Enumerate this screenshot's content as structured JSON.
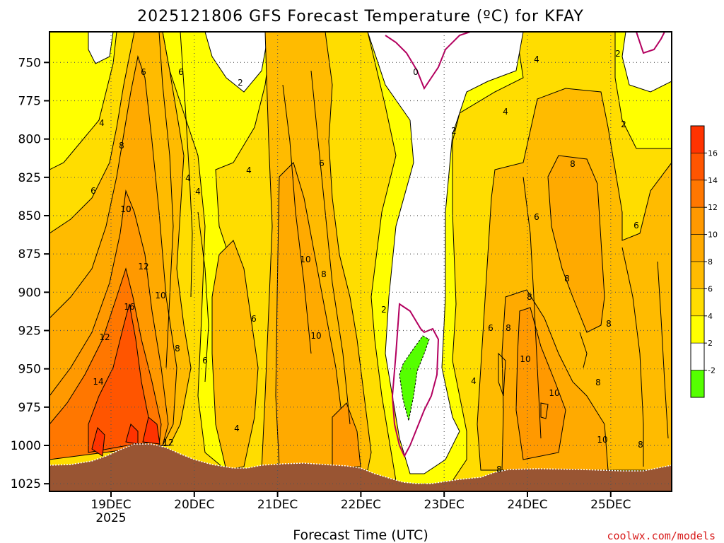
{
  "chart_data": {
    "type": "heatmap",
    "title": "2025121806 GFS Forecast Temperature (ºC) for KFAY",
    "xlabel": "Forecast Time (UTC)",
    "ylabel": "",
    "credit": "coolwx.com/models",
    "y_axis": {
      "ticks": [
        750,
        775,
        800,
        825,
        850,
        875,
        900,
        925,
        950,
        975,
        1000,
        1025
      ],
      "range": [
        730,
        1030
      ],
      "reversed": true
    },
    "x_axis": {
      "ticks": [
        {
          "label": "19DEC",
          "sublabel": "2025"
        },
        {
          "label": "20DEC",
          "sublabel": ""
        },
        {
          "label": "21DEC",
          "sublabel": ""
        },
        {
          "label": "22DEC",
          "sublabel": ""
        },
        {
          "label": "23DEC",
          "sublabel": ""
        },
        {
          "label": "24DEC",
          "sublabel": ""
        },
        {
          "label": "25DEC",
          "sublabel": ""
        }
      ]
    },
    "colorbar": {
      "levels": [
        {
          "label": "",
          "color": "#ff3300"
        },
        {
          "label": "16",
          "color": "#ff5500"
        },
        {
          "label": "14",
          "color": "#ff7700"
        },
        {
          "label": "12",
          "color": "#ff9900"
        },
        {
          "label": "10",
          "color": "#ffaa00"
        },
        {
          "label": "8",
          "color": "#ffbb00"
        },
        {
          "label": "6",
          "color": "#ffdd00"
        },
        {
          "label": "4",
          "color": "#ffff00"
        },
        {
          "label": "2",
          "color": "#ffffff"
        },
        {
          "label": "-2",
          "color": "#55ff00"
        }
      ]
    },
    "contour_labels": [
      "0",
      "2",
      "2",
      "2",
      "2",
      "2",
      "4",
      "4",
      "4",
      "4",
      "4",
      "4",
      "4",
      "4",
      "6",
      "6",
      "6",
      "6",
      "6",
      "6",
      "6",
      "6",
      "6",
      "8",
      "8",
      "8",
      "8",
      "8",
      "8",
      "8",
      "8",
      "8",
      "8",
      "8",
      "10",
      "10",
      "10",
      "10",
      "10",
      "10",
      "10",
      "10",
      "12",
      "12",
      "12",
      "14",
      "16"
    ],
    "grid": true
  }
}
